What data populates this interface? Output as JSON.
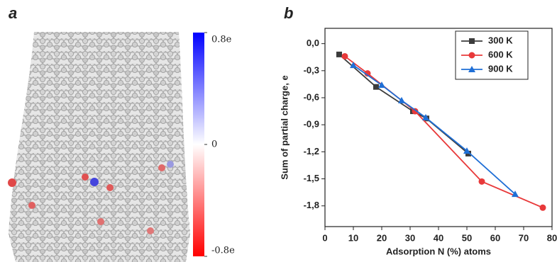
{
  "panel_a": {
    "label": "a",
    "colorbar": {
      "lim": [
        -0.8,
        0.8
      ],
      "ticks": [
        {
          "value": 0.8,
          "label": "0.8e"
        },
        0,
        {
          "value": -0.8,
          "label": "-0.8e"
        }
      ]
    }
  },
  "chart_data": {
    "type": "line",
    "label": "b",
    "x_label": "Adsorption N (%) atoms",
    "y_label": "Sum of partial charge, e",
    "xlim": [
      0,
      80
    ],
    "xticks": [
      0,
      10,
      20,
      30,
      40,
      50,
      60,
      70,
      80
    ],
    "ylim": [
      -2.03,
      0.17
    ],
    "yticks": [
      {
        "value": 0,
        "label": "0,0"
      },
      {
        "value": -0.3,
        "label": "-0,3"
      },
      {
        "value": -0.6,
        "label": "-0,6"
      },
      {
        "value": -0.9,
        "label": "-0,9"
      },
      {
        "value": -1.2,
        "label": "-1,2"
      },
      {
        "value": -1.5,
        "label": "-1,5"
      },
      {
        "value": -1.8,
        "label": "-1,8"
      }
    ],
    "legend": "upper right",
    "series": [
      {
        "name": "300 K",
        "color": "#3c3c3c",
        "marker": "square",
        "x": [
          5,
          18,
          31,
          35.75,
          50.5
        ],
        "values": [
          -0.12,
          -0.48,
          -0.75,
          -0.83,
          -1.22
        ]
      },
      {
        "name": "600 K",
        "color": "#e8393a",
        "marker": "circle",
        "x": [
          7,
          15,
          31.75,
          55.25,
          76.75
        ],
        "values": [
          -0.14,
          -0.33,
          -0.75,
          -1.53,
          -1.82
        ]
      },
      {
        "name": "900 K",
        "color": "#1f6fd6",
        "marker": "triangle",
        "x": [
          10,
          20,
          27,
          35.5,
          50,
          67
        ],
        "values": [
          -0.24,
          -0.46,
          -0.63,
          -0.82,
          -1.19,
          -1.67
        ]
      }
    ]
  }
}
